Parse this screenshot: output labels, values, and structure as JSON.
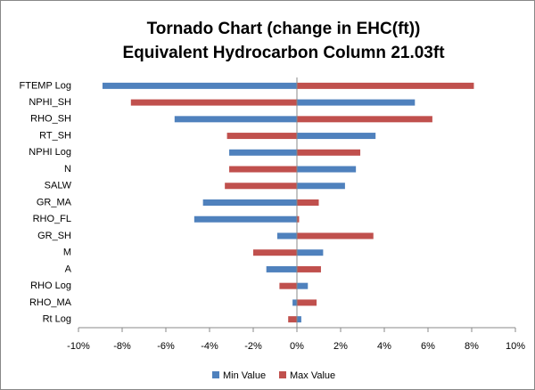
{
  "chart_data": {
    "type": "tornado",
    "title": "Tornado Chart (change in EHC(ft))",
    "subtitle": "Equivalent Hydrocarbon Column 21.03ft",
    "categories": [
      "FTEMP Log",
      "NPHI_SH",
      "RHO_SH",
      "RT_SH",
      "NPHI Log",
      "N",
      "SALW",
      "GR_MA",
      "RHO_FL",
      "GR_SH",
      "M",
      "A",
      "RHO Log",
      "RHO_MA",
      "Rt Log"
    ],
    "series": [
      {
        "name": "Min Value",
        "color": "#4f81bd",
        "values": [
          -8.9,
          5.4,
          -5.6,
          3.6,
          -3.1,
          2.7,
          2.2,
          -4.3,
          -4.7,
          -0.9,
          1.2,
          -1.4,
          0.5,
          -0.2,
          0.2
        ]
      },
      {
        "name": "Max Value",
        "color": "#c0504d",
        "values": [
          8.1,
          -7.6,
          6.2,
          -3.2,
          2.9,
          -3.1,
          -3.3,
          1.0,
          0.1,
          3.5,
          -2.0,
          1.1,
          -0.8,
          0.9,
          -0.4
        ]
      }
    ],
    "xlim": [
      -10,
      10
    ],
    "xticks": [
      {
        "value": -10,
        "label": "-10%"
      },
      {
        "value": -8,
        "label": "-8%"
      },
      {
        "value": -6,
        "label": "-6%"
      },
      {
        "value": -4,
        "label": "-4%"
      },
      {
        "value": -2,
        "label": "-2%"
      },
      {
        "value": 0,
        "label": "0%"
      },
      {
        "value": 2,
        "label": "2%"
      },
      {
        "value": 4,
        "label": "4%"
      },
      {
        "value": 6,
        "label": "6%"
      },
      {
        "value": 8,
        "label": "8%"
      },
      {
        "value": 10,
        "label": "10%"
      }
    ],
    "legend": "bottom"
  }
}
